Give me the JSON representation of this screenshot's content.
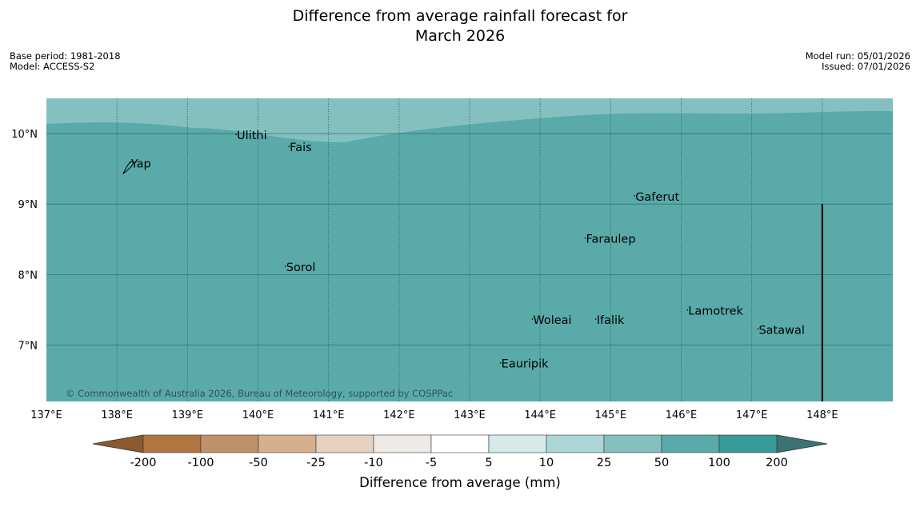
{
  "title": {
    "line1": "Difference from average rainfall forecast for",
    "line2": "March 2026"
  },
  "meta_left": {
    "base_period": "Base period: 1981-2018",
    "model": "Model: ACCESS-S2"
  },
  "meta_right": {
    "model_run": "Model run: 05/01/2026",
    "issued": "Issued: 07/01/2026"
  },
  "map": {
    "lon_range": [
      137,
      149
    ],
    "lat_range": [
      6.2,
      10.5
    ],
    "lon_ticks": [
      {
        "value": 137,
        "label": "137°E"
      },
      {
        "value": 138,
        "label": "138°E"
      },
      {
        "value": 139,
        "label": "139°E"
      },
      {
        "value": 140,
        "label": "140°E"
      },
      {
        "value": 141,
        "label": "141°E"
      },
      {
        "value": 142,
        "label": "142°E"
      },
      {
        "value": 143,
        "label": "143°E"
      },
      {
        "value": 144,
        "label": "144°E"
      },
      {
        "value": 145,
        "label": "145°E"
      },
      {
        "value": 146,
        "label": "146°E"
      },
      {
        "value": 147,
        "label": "147°E"
      },
      {
        "value": 148,
        "label": "148°E"
      }
    ],
    "lat_ticks": [
      {
        "value": 10,
        "label": "10°N"
      },
      {
        "value": 9,
        "label": "9°N"
      },
      {
        "value": 8,
        "label": "8°N"
      },
      {
        "value": 7,
        "label": "7°N"
      }
    ],
    "places": [
      {
        "name": "Yap",
        "lon": 138.2,
        "lat": 9.52
      },
      {
        "name": "Ulithi",
        "lon": 139.7,
        "lat": 9.92
      },
      {
        "name": "Fais",
        "lon": 140.45,
        "lat": 9.75
      },
      {
        "name": "Gaferut",
        "lon": 145.35,
        "lat": 9.05
      },
      {
        "name": "Faraulep",
        "lon": 144.65,
        "lat": 8.45
      },
      {
        "name": "Sorol",
        "lon": 140.4,
        "lat": 8.05
      },
      {
        "name": "Woleai",
        "lon": 143.9,
        "lat": 7.3
      },
      {
        "name": "Ifalik",
        "lon": 144.8,
        "lat": 7.3
      },
      {
        "name": "Lamotrek",
        "lon": 146.1,
        "lat": 7.43
      },
      {
        "name": "Satawal",
        "lon": 147.1,
        "lat": 7.16
      },
      {
        "name": "Eauripik",
        "lon": 143.45,
        "lat": 6.68
      }
    ],
    "boundary_line": {
      "lon": 148,
      "lat_from": 6.2,
      "lat_to": 9.0
    },
    "copyright": "© Commonwealth of Australia 2026, Bureau of Meteorology, supported by COSPPac"
  },
  "colorbar": {
    "labels": [
      "-200",
      "-100",
      "-50",
      "-25",
      "-10",
      "-5",
      "5",
      "10",
      "25",
      "50",
      "100",
      "200"
    ],
    "colors": [
      "#b17640",
      "#c0926a",
      "#d4b08e",
      "#e4d1c0",
      "#eeebe6",
      "#ffffff",
      "#d6eae9",
      "#acd6d5",
      "#84c0bf",
      "#5aaaaa",
      "#389a98"
    ],
    "under_color": "#8a5a30",
    "over_color": "#3c7474",
    "label": "Difference from average (mm)"
  },
  "colors": {
    "map_main": "#5aaaaa",
    "map_band": "#84c0bf",
    "gridline": "#1e5f5f"
  }
}
